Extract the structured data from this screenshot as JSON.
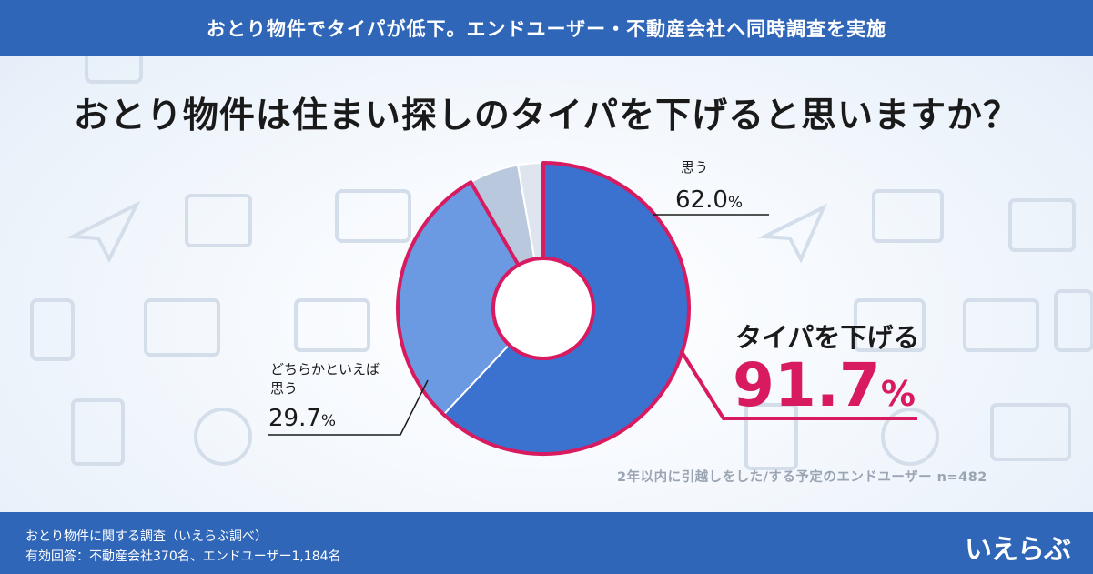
{
  "banner": "おとり物件でタイパが低下。エンドユーザー・不動産会社へ同時調査を実施",
  "question": "おとり物件は住まい探しのタイパを下げると思いますか？",
  "highlight": {
    "label": "タイパを下げる",
    "value": "91.7",
    "unit": "%"
  },
  "note": "2年以内に引越しをした/する予定のエンドユーザー n=482",
  "footer": {
    "line1": "おとり物件に関する調査（いえらぶ調べ）",
    "line2": "有効回答：不動産会社370名、エンドユーザー1,184名",
    "logo": "いえらぶ"
  },
  "colors": {
    "banner": "#2f66b8",
    "slice_main": "#3b72d0",
    "slice_second": "#6b99e2",
    "slice_third": "#b9c8dc",
    "slice_fourth": "#dfe5ee",
    "highlight_border": "#d81b60"
  },
  "chart_data": {
    "type": "pie",
    "hole": true,
    "slices": [
      {
        "label": "思う",
        "value": 62.0,
        "value_text": "62.0",
        "unit": "%"
      },
      {
        "label_line1": "どちらかといえば",
        "label_line2": "思う",
        "value": 29.7,
        "value_text": "29.7",
        "unit": "%"
      },
      {
        "value": 5.5
      },
      {
        "value": 2.8
      }
    ]
  }
}
